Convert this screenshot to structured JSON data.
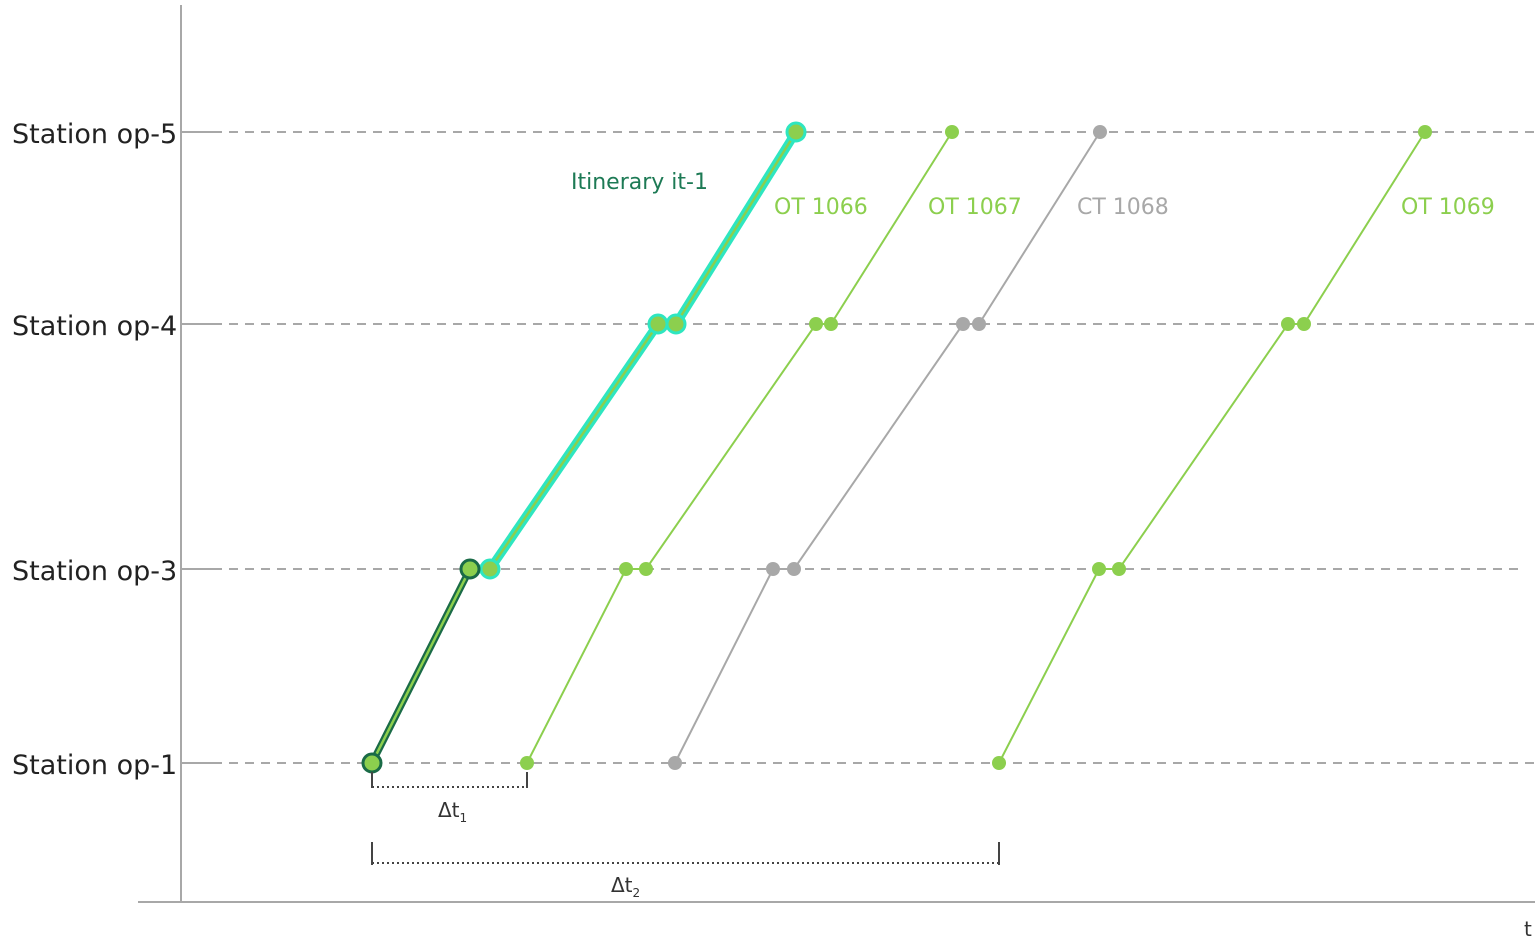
{
  "stations": [
    {
      "id": "op-5",
      "label": "Station op-5"
    },
    {
      "id": "op-4",
      "label": "Station op-4"
    },
    {
      "id": "op-3",
      "label": "Station op-3"
    },
    {
      "id": "op-1",
      "label": "Station op-1"
    }
  ],
  "itinerary": {
    "label": "Itinerary it-1",
    "label_color": "#1d7a55",
    "colors": {
      "highlight": "#2ee6c0",
      "dark": "#1a6b47",
      "fill": "#8ccf4e"
    }
  },
  "trains": [
    {
      "label": "OT 1066",
      "color": "#8ccf4e"
    },
    {
      "label": "OT 1067",
      "color": "#8ccf4e"
    },
    {
      "label": "CT 1068",
      "color": "#a8a8a8"
    },
    {
      "label": "OT 1069",
      "color": "#8ccf4e"
    }
  ],
  "intervals": [
    {
      "symbol": "Δt",
      "subscript": "1"
    },
    {
      "symbol": "Δt",
      "subscript": "2"
    }
  ],
  "axis": {
    "time_label": "t"
  },
  "colors": {
    "axis": "#a8a8a8",
    "gridline": "#a8a8a8",
    "bracket": "#444444"
  }
}
